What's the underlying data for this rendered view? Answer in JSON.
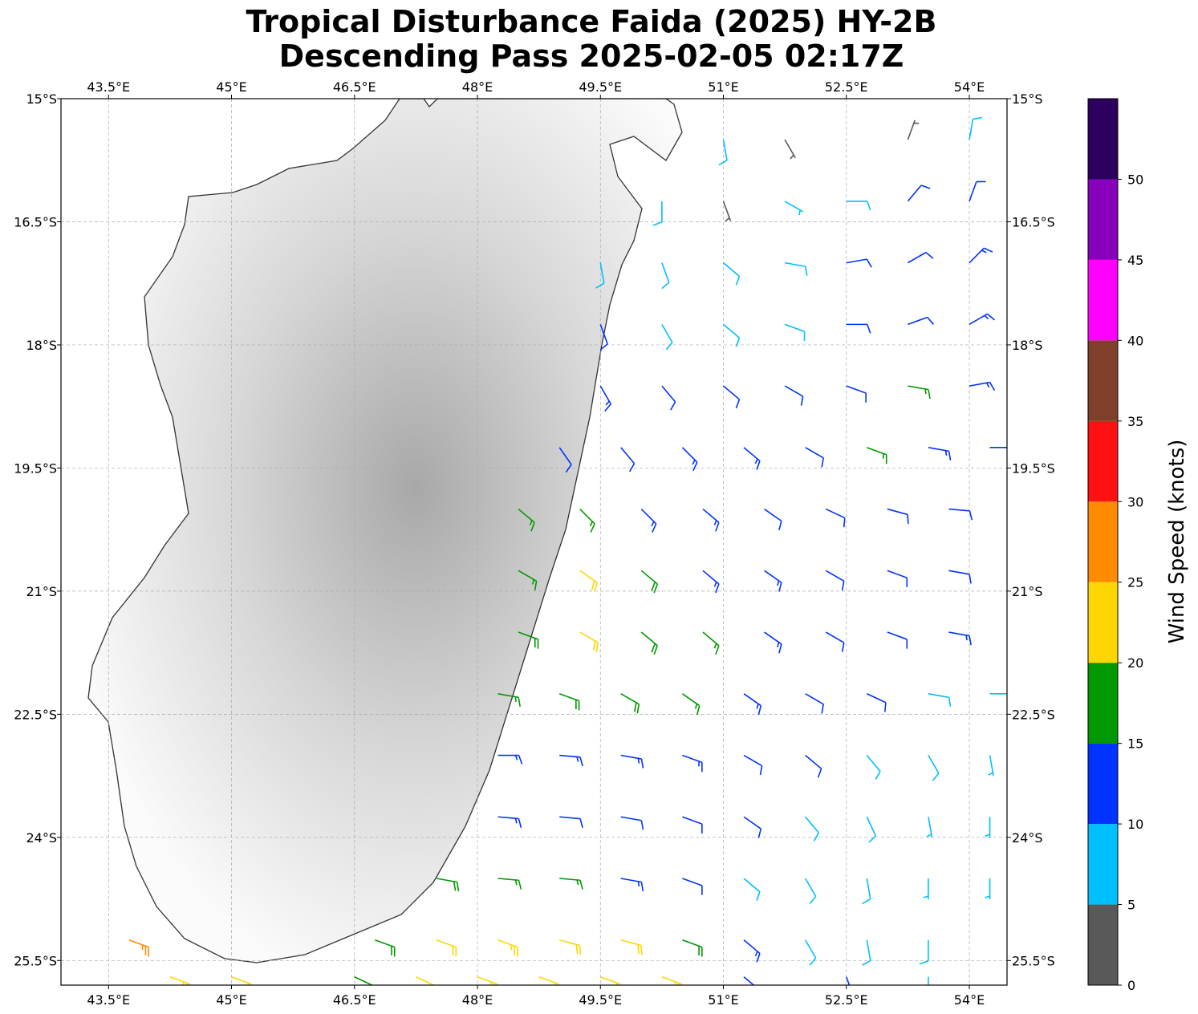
{
  "map": {
    "title": "Tropical Disturbance Faida (2025) HY-2B",
    "subtitle": "Descending Pass 2025-02-05 02:17Z",
    "xlim": [
      42.92,
      54.46
    ],
    "ylim": [
      -25.8,
      -15
    ],
    "xticks": [
      {
        "value": 43.5,
        "label": "43.5°E"
      },
      {
        "value": 45,
        "label": "45°E"
      },
      {
        "value": 46.5,
        "label": "46.5°E"
      },
      {
        "value": 48,
        "label": "48°E"
      },
      {
        "value": 49.5,
        "label": "49.5°E"
      },
      {
        "value": 51,
        "label": "51°E"
      },
      {
        "value": 52.5,
        "label": "52.5°E"
      },
      {
        "value": 54,
        "label": "54°E"
      }
    ],
    "yticks": [
      {
        "value": -15,
        "label": "15°S"
      },
      {
        "value": -16.5,
        "label": "16.5°S"
      },
      {
        "value": -18,
        "label": "18°S"
      },
      {
        "value": -19.5,
        "label": "19.5°S"
      },
      {
        "value": -21,
        "label": "21°S"
      },
      {
        "value": -22.5,
        "label": "22.5°S"
      },
      {
        "value": -24,
        "label": "24°S"
      },
      {
        "value": -25.5,
        "label": "25.5°S"
      }
    ],
    "grid": true,
    "colorbar": {
      "label": "Wind Speed (knots)",
      "lim": [
        0,
        55
      ],
      "ticks": [
        0,
        5,
        10,
        15,
        20,
        25,
        30,
        35,
        40,
        45,
        50
      ],
      "colors": [
        "#595959",
        "#00bfff",
        "#0033ff",
        "#009900",
        "#ffd700",
        "#ff8c00",
        "#ff1111",
        "#7f3f2a",
        "#ff00ff",
        "#8800bb",
        "#2d0060"
      ]
    },
    "barbs": [
      {
        "lon": 51,
        "lat": -15.5,
        "speed": 8,
        "direction": 170
      },
      {
        "lon": 51.75,
        "lat": -15.5,
        "speed": 4,
        "direction": 150
      },
      {
        "lon": 53.25,
        "lat": -15.5,
        "speed": 4,
        "direction": 20
      },
      {
        "lon": 54,
        "lat": -15.5,
        "speed": 9,
        "direction": 10
      },
      {
        "lon": 50.25,
        "lat": -16.25,
        "speed": 8,
        "direction": 180
      },
      {
        "lon": 51,
        "lat": -16.25,
        "speed": 4,
        "direction": 160
      },
      {
        "lon": 51.75,
        "lat": -16.25,
        "speed": 6,
        "direction": 120
      },
      {
        "lon": 52.5,
        "lat": -16.25,
        "speed": 9,
        "direction": 90
      },
      {
        "lon": 53.25,
        "lat": -16.25,
        "speed": 12,
        "direction": 40
      },
      {
        "lon": 54,
        "lat": -16.25,
        "speed": 12,
        "direction": 20
      },
      {
        "lon": 49.5,
        "lat": -17,
        "speed": 8,
        "direction": 170
      },
      {
        "lon": 50.25,
        "lat": -17,
        "speed": 8,
        "direction": 160
      },
      {
        "lon": 51,
        "lat": -17,
        "speed": 8,
        "direction": 130
      },
      {
        "lon": 51.75,
        "lat": -17,
        "speed": 9,
        "direction": 100
      },
      {
        "lon": 52.5,
        "lat": -17,
        "speed": 11,
        "direction": 80
      },
      {
        "lon": 53.25,
        "lat": -17,
        "speed": 12,
        "direction": 60
      },
      {
        "lon": 54,
        "lat": -17,
        "speed": 13,
        "direction": 45
      },
      {
        "lon": 49.5,
        "lat": -17.75,
        "speed": 10,
        "direction": 160
      },
      {
        "lon": 50.25,
        "lat": -17.75,
        "speed": 9,
        "direction": 150
      },
      {
        "lon": 51,
        "lat": -17.75,
        "speed": 8,
        "direction": 130
      },
      {
        "lon": 51.75,
        "lat": -17.75,
        "speed": 9,
        "direction": 110
      },
      {
        "lon": 52.5,
        "lat": -17.75,
        "speed": 12,
        "direction": 90
      },
      {
        "lon": 53.25,
        "lat": -17.75,
        "speed": 12,
        "direction": 70
      },
      {
        "lon": 54,
        "lat": -17.75,
        "speed": 13,
        "direction": 60
      },
      {
        "lon": 49.5,
        "lat": -18.5,
        "speed": 13,
        "direction": 150
      },
      {
        "lon": 50.25,
        "lat": -18.5,
        "speed": 12,
        "direction": 140
      },
      {
        "lon": 51,
        "lat": -18.5,
        "speed": 10,
        "direction": 130
      },
      {
        "lon": 51.75,
        "lat": -18.5,
        "speed": 11,
        "direction": 120
      },
      {
        "lon": 52.5,
        "lat": -18.5,
        "speed": 12,
        "direction": 110
      },
      {
        "lon": 53.25,
        "lat": -18.5,
        "speed": 16,
        "direction": 100
      },
      {
        "lon": 54,
        "lat": -18.5,
        "speed": 13,
        "direction": 80
      },
      {
        "lon": 49,
        "lat": -19.25,
        "speed": 12,
        "direction": 145
      },
      {
        "lon": 49.75,
        "lat": -19.25,
        "speed": 12,
        "direction": 140
      },
      {
        "lon": 50.5,
        "lat": -19.25,
        "speed": 13,
        "direction": 135
      },
      {
        "lon": 51.25,
        "lat": -19.25,
        "speed": 13,
        "direction": 130
      },
      {
        "lon": 52,
        "lat": -19.25,
        "speed": 12,
        "direction": 120
      },
      {
        "lon": 52.75,
        "lat": -19.25,
        "speed": 17,
        "direction": 110
      },
      {
        "lon": 53.5,
        "lat": -19.25,
        "speed": 13,
        "direction": 100
      },
      {
        "lon": 54.25,
        "lat": -19.25,
        "speed": 11,
        "direction": 90
      },
      {
        "lon": 48.5,
        "lat": -20,
        "speed": 15,
        "direction": 130
      },
      {
        "lon": 49.25,
        "lat": -20,
        "speed": 17,
        "direction": 135
      },
      {
        "lon": 50,
        "lat": -20,
        "speed": 13,
        "direction": 135
      },
      {
        "lon": 50.75,
        "lat": -20,
        "speed": 13,
        "direction": 130
      },
      {
        "lon": 51.5,
        "lat": -20,
        "speed": 12,
        "direction": 125
      },
      {
        "lon": 52.25,
        "lat": -20,
        "speed": 12,
        "direction": 115
      },
      {
        "lon": 53,
        "lat": -20,
        "speed": 11,
        "direction": 105
      },
      {
        "lon": 53.75,
        "lat": -20,
        "speed": 10,
        "direction": 95
      },
      {
        "lon": 48.5,
        "lat": -20.75,
        "speed": 17,
        "direction": 120
      },
      {
        "lon": 49.25,
        "lat": -20.75,
        "speed": 22,
        "direction": 125
      },
      {
        "lon": 50,
        "lat": -20.75,
        "speed": 18,
        "direction": 130
      },
      {
        "lon": 50.75,
        "lat": -20.75,
        "speed": 14,
        "direction": 130
      },
      {
        "lon": 51.5,
        "lat": -20.75,
        "speed": 13,
        "direction": 125
      },
      {
        "lon": 52.25,
        "lat": -20.75,
        "speed": 12,
        "direction": 120
      },
      {
        "lon": 53,
        "lat": -20.75,
        "speed": 11,
        "direction": 110
      },
      {
        "lon": 53.75,
        "lat": -20.75,
        "speed": 12,
        "direction": 100
      },
      {
        "lon": 48.5,
        "lat": -21.5,
        "speed": 18,
        "direction": 110
      },
      {
        "lon": 49.25,
        "lat": -21.5,
        "speed": 22,
        "direction": 120
      },
      {
        "lon": 50,
        "lat": -21.5,
        "speed": 18,
        "direction": 130
      },
      {
        "lon": 50.75,
        "lat": -21.5,
        "speed": 15,
        "direction": 130
      },
      {
        "lon": 51.5,
        "lat": -21.5,
        "speed": 13,
        "direction": 125
      },
      {
        "lon": 52.25,
        "lat": -21.5,
        "speed": 12,
        "direction": 120
      },
      {
        "lon": 53,
        "lat": -21.5,
        "speed": 10,
        "direction": 110
      },
      {
        "lon": 53.75,
        "lat": -21.5,
        "speed": 13,
        "direction": 100
      },
      {
        "lon": 48.25,
        "lat": -22.25,
        "speed": 17,
        "direction": 100
      },
      {
        "lon": 49,
        "lat": -22.25,
        "speed": 18,
        "direction": 110
      },
      {
        "lon": 49.75,
        "lat": -22.25,
        "speed": 18,
        "direction": 120
      },
      {
        "lon": 50.5,
        "lat": -22.25,
        "speed": 17,
        "direction": 125
      },
      {
        "lon": 51.25,
        "lat": -22.25,
        "speed": 14,
        "direction": 125
      },
      {
        "lon": 52,
        "lat": -22.25,
        "speed": 12,
        "direction": 120
      },
      {
        "lon": 52.75,
        "lat": -22.25,
        "speed": 10,
        "direction": 115
      },
      {
        "lon": 53.5,
        "lat": -22.25,
        "speed": 8,
        "direction": 100
      },
      {
        "lon": 54.25,
        "lat": -22.25,
        "speed": 9,
        "direction": 90
      },
      {
        "lon": 48.25,
        "lat": -23,
        "speed": 13,
        "direction": 90
      },
      {
        "lon": 49,
        "lat": -23,
        "speed": 14,
        "direction": 95
      },
      {
        "lon": 49.75,
        "lat": -23,
        "speed": 13,
        "direction": 100
      },
      {
        "lon": 50.5,
        "lat": -23,
        "speed": 13,
        "direction": 110
      },
      {
        "lon": 51.25,
        "lat": -23,
        "speed": 12,
        "direction": 120
      },
      {
        "lon": 52,
        "lat": -23,
        "speed": 11,
        "direction": 130
      },
      {
        "lon": 52.75,
        "lat": -23,
        "speed": 9,
        "direction": 140
      },
      {
        "lon": 53.5,
        "lat": -23,
        "speed": 8,
        "direction": 150
      },
      {
        "lon": 54.25,
        "lat": -23,
        "speed": 7,
        "direction": 170
      },
      {
        "lon": 48.25,
        "lat": -23.75,
        "speed": 13,
        "direction": 95
      },
      {
        "lon": 49,
        "lat": -23.75,
        "speed": 12,
        "direction": 95
      },
      {
        "lon": 49.75,
        "lat": -23.75,
        "speed": 12,
        "direction": 100
      },
      {
        "lon": 50.5,
        "lat": -23.75,
        "speed": 11,
        "direction": 110
      },
      {
        "lon": 51.25,
        "lat": -23.75,
        "speed": 10,
        "direction": 125
      },
      {
        "lon": 52,
        "lat": -23.75,
        "speed": 9,
        "direction": 140
      },
      {
        "lon": 52.75,
        "lat": -23.75,
        "speed": 8,
        "direction": 155
      },
      {
        "lon": 53.5,
        "lat": -23.75,
        "speed": 7,
        "direction": 170
      },
      {
        "lon": 54.25,
        "lat": -23.75,
        "speed": 6,
        "direction": 180
      },
      {
        "lon": 47.5,
        "lat": -24.5,
        "speed": 18,
        "direction": 100
      },
      {
        "lon": 48.25,
        "lat": -24.5,
        "speed": 17,
        "direction": 95
      },
      {
        "lon": 49,
        "lat": -24.5,
        "speed": 16,
        "direction": 95
      },
      {
        "lon": 49.75,
        "lat": -24.5,
        "speed": 13,
        "direction": 100
      },
      {
        "lon": 50.5,
        "lat": -24.5,
        "speed": 12,
        "direction": 110
      },
      {
        "lon": 51.25,
        "lat": -24.5,
        "speed": 9,
        "direction": 130
      },
      {
        "lon": 52,
        "lat": -24.5,
        "speed": 8,
        "direction": 150
      },
      {
        "lon": 52.75,
        "lat": -24.5,
        "speed": 8,
        "direction": 170
      },
      {
        "lon": 53.5,
        "lat": -24.5,
        "speed": 7,
        "direction": 180
      },
      {
        "lon": 54.25,
        "lat": -24.5,
        "speed": 7,
        "direction": 180
      },
      {
        "lon": 43.75,
        "lat": -25.25,
        "speed": 27,
        "direction": 110
      },
      {
        "lon": 46.75,
        "lat": -25.25,
        "speed": 19,
        "direction": 110
      },
      {
        "lon": 47.5,
        "lat": -25.25,
        "speed": 22,
        "direction": 110
      },
      {
        "lon": 48.25,
        "lat": -25.25,
        "speed": 23,
        "direction": 110
      },
      {
        "lon": 49,
        "lat": -25.25,
        "speed": 22,
        "direction": 105
      },
      {
        "lon": 49.75,
        "lat": -25.25,
        "speed": 20,
        "direction": 105
      },
      {
        "lon": 50.5,
        "lat": -25.25,
        "speed": 18,
        "direction": 110
      },
      {
        "lon": 51.25,
        "lat": -25.25,
        "speed": 13,
        "direction": 130
      },
      {
        "lon": 52,
        "lat": -25.25,
        "speed": 9,
        "direction": 150
      },
      {
        "lon": 52.75,
        "lat": -25.25,
        "speed": 8,
        "direction": 170
      },
      {
        "lon": 53.5,
        "lat": -25.25,
        "speed": 8,
        "direction": 180
      },
      {
        "lon": 44.25,
        "lat": -25.7,
        "speed": 23,
        "direction": 110
      },
      {
        "lon": 45,
        "lat": -25.7,
        "speed": 22,
        "direction": 110
      },
      {
        "lon": 46.5,
        "lat": -25.7,
        "speed": 18,
        "direction": 115
      },
      {
        "lon": 47.25,
        "lat": -25.7,
        "speed": 22,
        "direction": 115
      },
      {
        "lon": 48,
        "lat": -25.7,
        "speed": 23,
        "direction": 110
      },
      {
        "lon": 48.75,
        "lat": -25.7,
        "speed": 22,
        "direction": 110
      },
      {
        "lon": 49.5,
        "lat": -25.7,
        "speed": 22,
        "direction": 110
      },
      {
        "lon": 50.25,
        "lat": -25.7,
        "speed": 23,
        "direction": 110
      },
      {
        "lon": 51.25,
        "lat": -25.7,
        "speed": 14,
        "direction": 130
      },
      {
        "lon": 52.5,
        "lat": -25.7,
        "speed": 10,
        "direction": 160
      },
      {
        "lon": 53.5,
        "lat": -25.7,
        "speed": 9,
        "direction": 180
      }
    ]
  }
}
